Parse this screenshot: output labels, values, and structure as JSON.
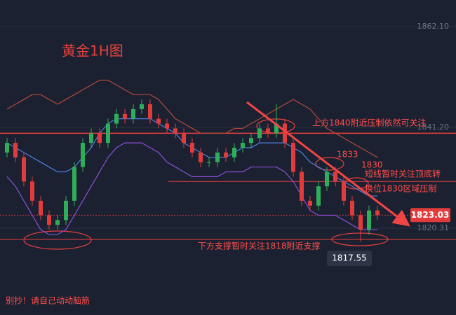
{
  "chart_data": {
    "type": "candlestick",
    "title": "黄金1H图",
    "ylim": [
      1802.33,
      1867.61
    ],
    "yticks": [
      {
        "value": 1862.1,
        "label": "1862.10"
      },
      {
        "value": 1841.2,
        "label": "1841.20"
      },
      {
        "value": 1820.31,
        "label": "1820.31"
      }
    ],
    "grid": true,
    "up_color": "#2fae5a",
    "down_color": "#e23b3b",
    "open": [
      1836,
      1838,
      1835,
      1830,
      1826,
      1823,
      1821,
      1822,
      1826,
      1833,
      1838,
      1840,
      1838,
      1842,
      1844,
      1843,
      1845,
      1846,
      1843,
      1842,
      1841,
      1840,
      1838,
      1836,
      1834,
      1834,
      1836,
      1835,
      1837,
      1838,
      1839,
      1841,
      1840,
      1842,
      1838,
      1832,
      1826,
      1825,
      1829,
      1832,
      1830,
      1826,
      1823,
      1820,
      1824
    ],
    "high": [
      1839,
      1839,
      1836,
      1831,
      1827,
      1824,
      1823,
      1827,
      1834,
      1839,
      1841,
      1841,
      1843,
      1845,
      1845,
      1846,
      1847,
      1847,
      1844,
      1843,
      1842,
      1841,
      1839,
      1837,
      1835,
      1837,
      1837,
      1838,
      1839,
      1840,
      1842,
      1842,
      1846,
      1843,
      1839,
      1833,
      1827,
      1830,
      1833,
      1833,
      1831,
      1827,
      1824,
      1825,
      1825
    ],
    "low": [
      1835,
      1834,
      1829,
      1825,
      1822,
      1820,
      1820,
      1821,
      1825,
      1832,
      1837,
      1837,
      1837,
      1841,
      1842,
      1842,
      1844,
      1842,
      1841,
      1840,
      1839,
      1837,
      1835,
      1833,
      1833,
      1833,
      1834,
      1834,
      1836,
      1837,
      1838,
      1839,
      1839,
      1837,
      1831,
      1825,
      1824,
      1824,
      1828,
      1829,
      1825,
      1822,
      1817.55,
      1819,
      1822
    ],
    "close": [
      1838,
      1835,
      1830,
      1826,
      1823,
      1821,
      1822,
      1826,
      1833,
      1838,
      1840,
      1838,
      1842,
      1844,
      1843,
      1845,
      1846,
      1843,
      1842,
      1841,
      1840,
      1838,
      1836,
      1834,
      1834,
      1836,
      1835,
      1837,
      1838,
      1839,
      1841,
      1840,
      1842,
      1838,
      1832,
      1826,
      1825,
      1829,
      1832,
      1830,
      1826,
      1823,
      1820,
      1824,
      1823.03
    ],
    "series": [
      {
        "color": "#b5493a",
        "values": [
          1845,
          1846,
          1847,
          1848,
          1848,
          1847,
          1846,
          1847,
          1848,
          1849,
          1850,
          1851,
          1851,
          1850,
          1849,
          1848,
          1848,
          1848,
          1847,
          1845,
          1843,
          1842,
          1841,
          1840,
          1840,
          1840,
          1840,
          1841,
          1841,
          1842,
          1843,
          1844,
          1845,
          1846,
          1847,
          1846,
          1845,
          1843,
          1841,
          1840,
          1839,
          1838,
          1837,
          1836,
          1835
        ]
      },
      {
        "color": "#4f7fe0",
        "values": [
          1838,
          1837,
          1836,
          1835,
          1834,
          1833,
          1832,
          1832,
          1833,
          1835,
          1837,
          1840,
          1842,
          1843,
          1843,
          1843,
          1843,
          1843,
          1842,
          1841,
          1840,
          1838,
          1837,
          1836,
          1835,
          1835,
          1835,
          1836,
          1837,
          1837,
          1838,
          1838,
          1838,
          1838,
          1837,
          1836,
          1834,
          1833,
          1832,
          1831,
          1830,
          1829,
          1828,
          1827,
          1827
        ]
      },
      {
        "color": "#8a4fd8",
        "values": [
          1831,
          1829,
          1826,
          1823,
          1820,
          1819,
          1819,
          1820,
          1823,
          1826,
          1829,
          1832,
          1835,
          1837,
          1838,
          1838,
          1838,
          1837,
          1836,
          1834,
          1833,
          1832,
          1831,
          1831,
          1831,
          1831,
          1832,
          1832,
          1832,
          1833,
          1833,
          1833,
          1833,
          1832,
          1830,
          1827,
          1824,
          1823,
          1823,
          1823,
          1822,
          1821,
          1820,
          1820,
          1820
        ]
      }
    ],
    "levels": [
      1840,
      1830,
      1818
    ],
    "level_color": "#e84040",
    "last_price": {
      "value": 1823.03,
      "label": "1823.03"
    },
    "low_marker": {
      "value": 1817.55,
      "label": "1817.55"
    },
    "annotations": [
      "上方1840附近压制依然可关注",
      "1833",
      "1830",
      "短线暂时关注顶底转",
      "换位1830区域压制",
      "下方支撑暂时关注1818附近支撑",
      "别抄！请自己动动脑筋"
    ]
  }
}
